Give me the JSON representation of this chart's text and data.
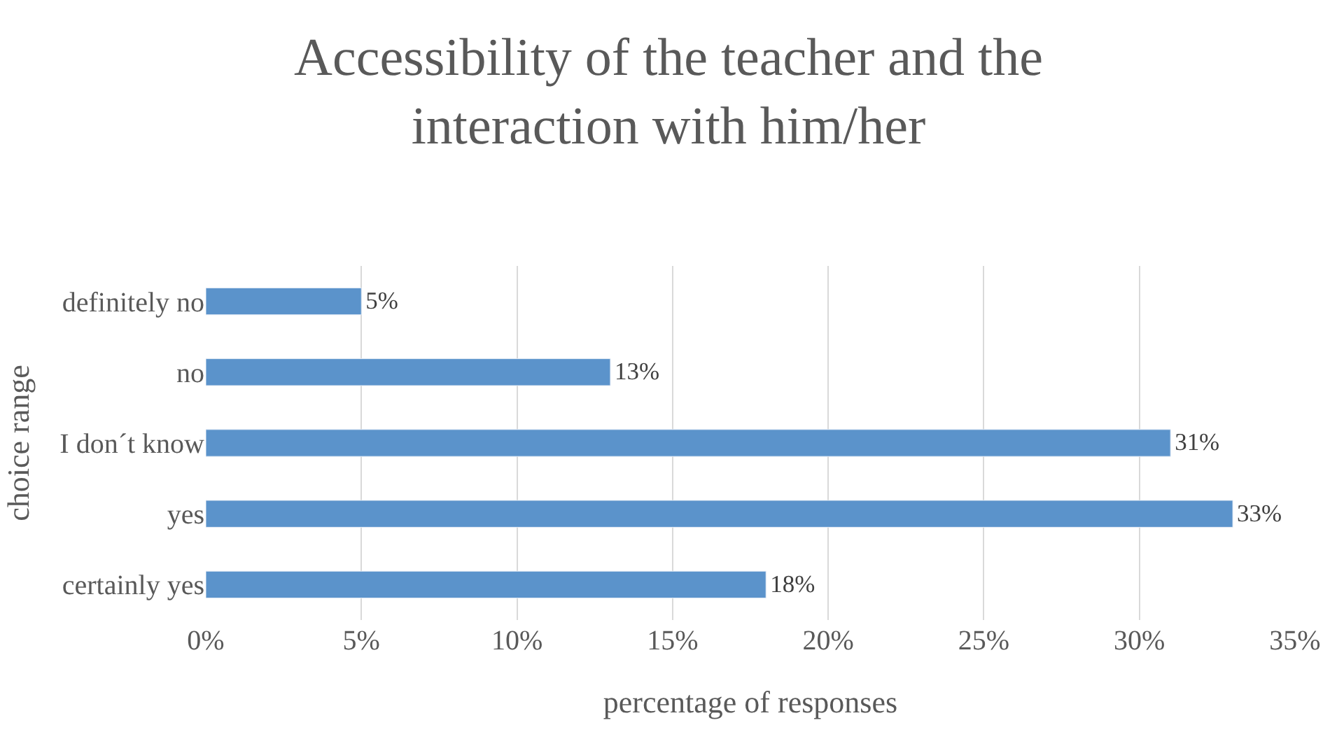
{
  "chart_data": {
    "type": "bar",
    "orientation": "horizontal",
    "title": "Accessibility of the teacher and the interaction with him/her",
    "xlabel": "percentage of responses",
    "ylabel": "choice range",
    "categories": [
      "definitely no",
      "no",
      "I don´t know",
      "yes",
      "certainly yes"
    ],
    "values": [
      5,
      13,
      31,
      33,
      18
    ],
    "value_labels": [
      "5%",
      "13%",
      "31%",
      "33%",
      "18%"
    ],
    "color": "#5b93cb",
    "xlim": [
      0,
      35
    ],
    "xticks": [
      {
        "value": 0,
        "label": "0%"
      },
      {
        "value": 5,
        "label": "5%"
      },
      {
        "value": 10,
        "label": "10%"
      },
      {
        "value": 15,
        "label": "15%"
      },
      {
        "value": 20,
        "label": "20%"
      },
      {
        "value": 25,
        "label": "25%"
      },
      {
        "value": 30,
        "label": "30%"
      },
      {
        "value": 35,
        "label": "35%"
      }
    ],
    "grid": "x"
  }
}
